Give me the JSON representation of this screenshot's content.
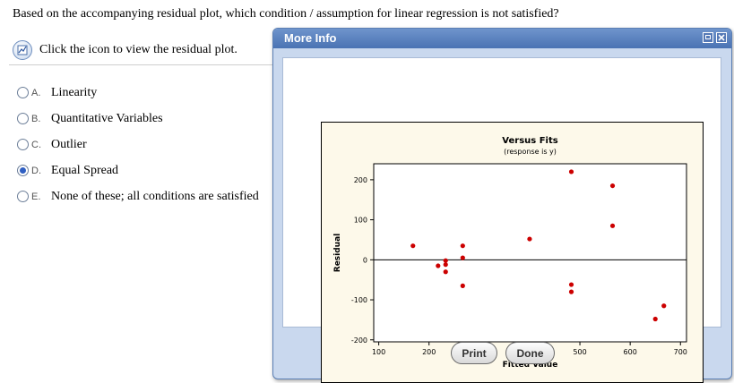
{
  "question": "Based on the accompanying residual plot, which condition / assumption for linear regression is not satisfied?",
  "hint": {
    "text": "Click the icon to view the residual plot."
  },
  "options": [
    {
      "letter": "A.",
      "text": "Linearity",
      "checked": false
    },
    {
      "letter": "B.",
      "text": "Quantitative Variables",
      "checked": false
    },
    {
      "letter": "C.",
      "text": "Outlier",
      "checked": false
    },
    {
      "letter": "D.",
      "text": "Equal Spread",
      "checked": true
    },
    {
      "letter": "E.",
      "text": "None of these; all conditions are satisfied",
      "checked": false
    }
  ],
  "popup": {
    "title": "More Info",
    "print_label": "Print",
    "done_label": "Done"
  },
  "chart_data": {
    "type": "scatter",
    "title": "Versus Fits",
    "subtitle": "(response is y)",
    "xlabel": "Fitted Value",
    "ylabel": "Residual",
    "xlim": [
      90,
      712
    ],
    "ylim": [
      -205,
      240
    ],
    "xticks": [
      100,
      200,
      300,
      400,
      500,
      600,
      700
    ],
    "yticks": [
      -200,
      -100,
      0,
      100,
      200
    ],
    "reference_line": 0,
    "marker_color": "#cc0000",
    "points": [
      [
        168,
        35
      ],
      [
        218,
        -15
      ],
      [
        233,
        -2
      ],
      [
        233,
        -12
      ],
      [
        233,
        -30
      ],
      [
        267,
        35
      ],
      [
        267,
        5
      ],
      [
        267,
        -65
      ],
      [
        400,
        52
      ],
      [
        483,
        220
      ],
      [
        483,
        -62
      ],
      [
        483,
        -80
      ],
      [
        565,
        185
      ],
      [
        565,
        85
      ],
      [
        650,
        -148
      ],
      [
        667,
        -115
      ]
    ]
  }
}
